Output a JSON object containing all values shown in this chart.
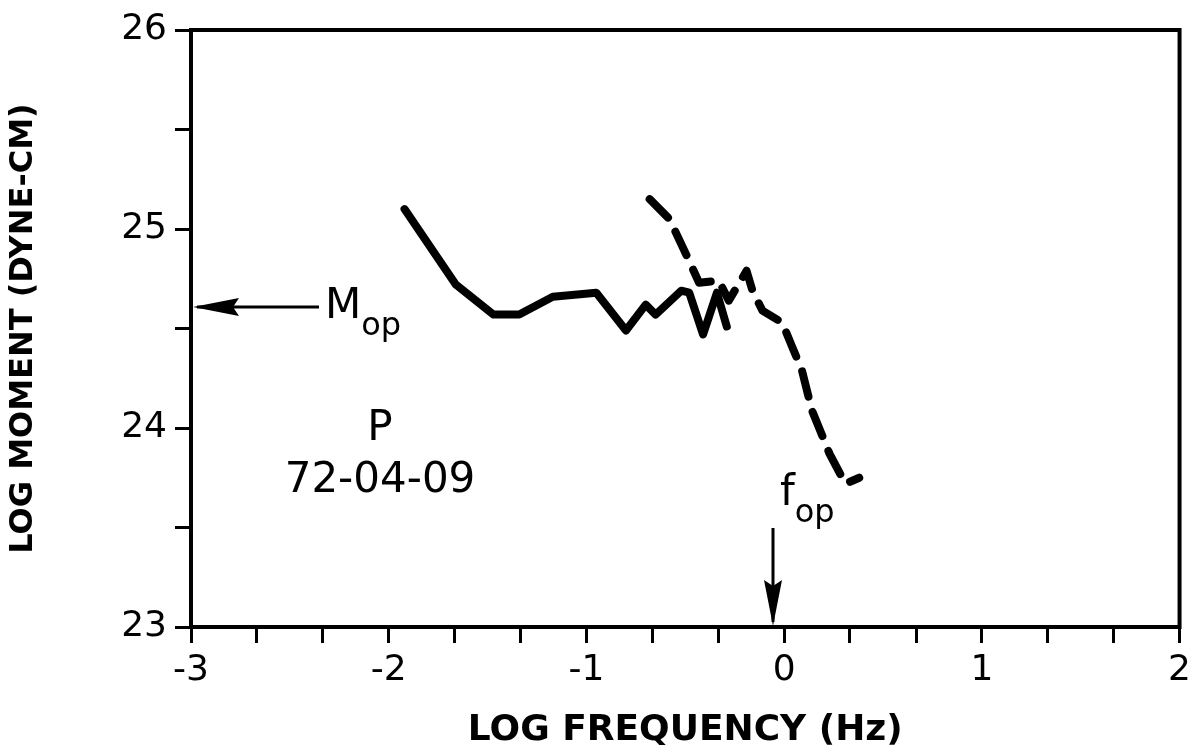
{
  "chart_data": {
    "type": "line",
    "xlabel": "LOG FREQUENCY (Hz)",
    "ylabel": "LOG MOMENT (DYNE-CM)",
    "xlim": [
      -3,
      2
    ],
    "ylim": [
      23,
      26
    ],
    "xticks": [
      -3,
      {
        "value": -2.667,
        "label": null
      },
      {
        "value": -2.333,
        "label": null
      },
      -2,
      {
        "value": -1.667,
        "label": null
      },
      {
        "value": -1.333,
        "label": null
      },
      -1,
      {
        "value": -0.667,
        "label": null
      },
      {
        "value": -0.333,
        "label": null
      },
      0,
      {
        "value": 0.333,
        "label": null
      },
      {
        "value": 0.667,
        "label": null
      },
      1,
      {
        "value": 1.333,
        "label": null
      },
      {
        "value": 1.667,
        "label": null
      },
      2
    ],
    "yticks": [
      23,
      {
        "value": 23.5,
        "label": null
      },
      24,
      {
        "value": 24.5,
        "label": null
      },
      25,
      {
        "value": 25.5,
        "label": null
      },
      26
    ],
    "grid": false,
    "legend": false,
    "marker": "none",
    "series": [
      {
        "color": "#000000",
        "line_style": "solid",
        "x": [
          -1.92,
          -1.66,
          -1.47,
          -1.34,
          -1.17,
          -0.95,
          -0.8,
          -0.7,
          -0.65,
          -0.52,
          -0.48,
          -0.41,
          -0.34,
          -0.29
        ],
        "values": [
          25.1,
          24.72,
          24.57,
          24.57,
          24.66,
          24.68,
          24.49,
          24.62,
          24.57,
          24.69,
          24.68,
          24.47,
          24.68,
          24.51
        ]
      },
      {
        "color": "#000000",
        "line_style": "dashed",
        "x": [
          -0.68,
          -0.58,
          -0.49,
          -0.43,
          -0.33,
          -0.28,
          -0.19,
          -0.16,
          -0.11,
          -0.01,
          0.04,
          0.09,
          0.14,
          0.23,
          0.31,
          0.38
        ],
        "values": [
          25.15,
          25.05,
          24.86,
          24.73,
          24.74,
          24.64,
          24.79,
          24.69,
          24.59,
          24.53,
          24.41,
          24.29,
          24.09,
          23.87,
          23.72,
          23.75
        ]
      }
    ],
    "annotations": [
      "M$_{op}$",
      "f$_{op}$",
      "P",
      "72-04-09"
    ]
  }
}
